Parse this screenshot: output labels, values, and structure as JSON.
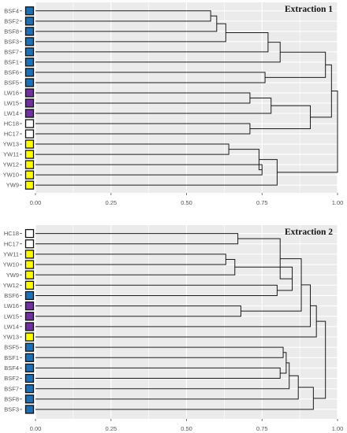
{
  "colors": {
    "panel_background": "#ebebeb",
    "gridline": "#ffffff",
    "branch": "#1a1a1a",
    "groups": {
      "BSF": "#1f6fb5",
      "LW": "#7030a0",
      "HC": "#ffffff",
      "YW": "#ffff00"
    }
  },
  "chart_data": [
    {
      "type": "dendrogram",
      "title": "Extraction 1",
      "xlabel": "",
      "ylabel": "",
      "xlim": [
        0,
        1
      ],
      "x_ticks": [
        0,
        0.25,
        0.5,
        0.75,
        1
      ],
      "x_tick_labels": [
        "0.00",
        "0.25",
        "0.50",
        "0.75",
        "1.00"
      ],
      "grid": true,
      "leaves": [
        {
          "label": "BSF4",
          "group": "BSF"
        },
        {
          "label": "BSF2",
          "group": "BSF"
        },
        {
          "label": "BSF8",
          "group": "BSF"
        },
        {
          "label": "BSF3",
          "group": "BSF"
        },
        {
          "label": "BSF7",
          "group": "BSF"
        },
        {
          "label": "BSF1",
          "group": "BSF"
        },
        {
          "label": "BSF6",
          "group": "BSF"
        },
        {
          "label": "BSF5",
          "group": "BSF"
        },
        {
          "label": "LW16",
          "group": "LW"
        },
        {
          "label": "LW15",
          "group": "LW"
        },
        {
          "label": "LW14",
          "group": "LW"
        },
        {
          "label": "HC18",
          "group": "HC"
        },
        {
          "label": "HC17",
          "group": "HC"
        },
        {
          "label": "YW13",
          "group": "YW"
        },
        {
          "label": "YW11",
          "group": "YW"
        },
        {
          "label": "YW12",
          "group": "YW"
        },
        {
          "label": "YW10",
          "group": "YW"
        },
        {
          "label": "YW9",
          "group": "YW"
        }
      ],
      "merges": [
        {
          "left": "BSF4",
          "right": "BSF2",
          "height": 0.58
        },
        {
          "left": 0,
          "right": "BSF8",
          "height": 0.6
        },
        {
          "left": 1,
          "right": "BSF3",
          "height": 0.63
        },
        {
          "left": 2,
          "right": "BSF7",
          "height": 0.77
        },
        {
          "left": 3,
          "right": "BSF1",
          "height": 0.81
        },
        {
          "left": "BSF6",
          "right": "BSF5",
          "height": 0.76
        },
        {
          "left": 4,
          "right": 5,
          "height": 0.96
        },
        {
          "left": "LW16",
          "right": "LW15",
          "height": 0.71
        },
        {
          "left": 7,
          "right": "LW14",
          "height": 0.78
        },
        {
          "left": "HC18",
          "right": "HC17",
          "height": 0.71
        },
        {
          "left": 8,
          "right": 9,
          "height": 0.91
        },
        {
          "left": 6,
          "right": 10,
          "height": 0.98
        },
        {
          "left": "YW13",
          "right": "YW11",
          "height": 0.64
        },
        {
          "left": "YW12",
          "right": "YW10",
          "height": 0.75
        },
        {
          "left": 12,
          "right": 13,
          "height": 0.74
        },
        {
          "left": 14,
          "right": "YW9",
          "height": 0.8
        },
        {
          "left": 11,
          "right": 15,
          "height": 1.0
        }
      ]
    },
    {
      "type": "dendrogram",
      "title": "Extraction 2",
      "xlabel": "",
      "ylabel": "",
      "xlim": [
        0,
        1
      ],
      "x_ticks": [
        0,
        0.25,
        0.5,
        0.75,
        1
      ],
      "x_tick_labels": [
        "0.00",
        "0.25",
        "0.50",
        "0.75",
        "1.00"
      ],
      "grid": true,
      "leaves": [
        {
          "label": "HC18",
          "group": "HC"
        },
        {
          "label": "HC17",
          "group": "HC"
        },
        {
          "label": "YW11",
          "group": "YW"
        },
        {
          "label": "YW10",
          "group": "YW"
        },
        {
          "label": "YW9",
          "group": "YW"
        },
        {
          "label": "YW12",
          "group": "YW"
        },
        {
          "label": "BSF6",
          "group": "BSF"
        },
        {
          "label": "LW16",
          "group": "LW"
        },
        {
          "label": "LW15",
          "group": "LW"
        },
        {
          "label": "LW14",
          "group": "LW"
        },
        {
          "label": "YW13",
          "group": "YW"
        },
        {
          "label": "BSF5",
          "group": "BSF"
        },
        {
          "label": "BSF1",
          "group": "BSF"
        },
        {
          "label": "BSF4",
          "group": "BSF"
        },
        {
          "label": "BSF2",
          "group": "BSF"
        },
        {
          "label": "BSF7",
          "group": "BSF"
        },
        {
          "label": "BSF8",
          "group": "BSF"
        },
        {
          "label": "BSF3",
          "group": "BSF"
        }
      ],
      "merges": [
        {
          "left": "HC18",
          "right": "HC17",
          "height": 0.67
        },
        {
          "left": "YW11",
          "right": "YW10",
          "height": 0.63
        },
        {
          "left": 1,
          "right": "YW9",
          "height": 0.66
        },
        {
          "left": "YW12",
          "right": "BSF6",
          "height": 0.8
        },
        {
          "left": 2,
          "right": 3,
          "height": 0.85
        },
        {
          "left": 0,
          "right": 4,
          "height": 0.81
        },
        {
          "left": "LW16",
          "right": "LW15",
          "height": 0.68
        },
        {
          "left": 5,
          "right": 6,
          "height": 0.88
        },
        {
          "left": 7,
          "right": "LW14",
          "height": 0.91
        },
        {
          "left": 8,
          "right": "YW13",
          "height": 0.93
        },
        {
          "left": "BSF5",
          "right": "BSF1",
          "height": 0.82
        },
        {
          "left": "BSF4",
          "right": "BSF2",
          "height": 0.81
        },
        {
          "left": 10,
          "right": 11,
          "height": 0.83
        },
        {
          "left": 12,
          "right": "BSF7",
          "height": 0.84
        },
        {
          "left": 13,
          "right": "BSF8",
          "height": 0.87
        },
        {
          "left": 14,
          "right": "BSF3",
          "height": 0.92
        },
        {
          "left": 9,
          "right": 15,
          "height": 0.96
        }
      ]
    }
  ]
}
